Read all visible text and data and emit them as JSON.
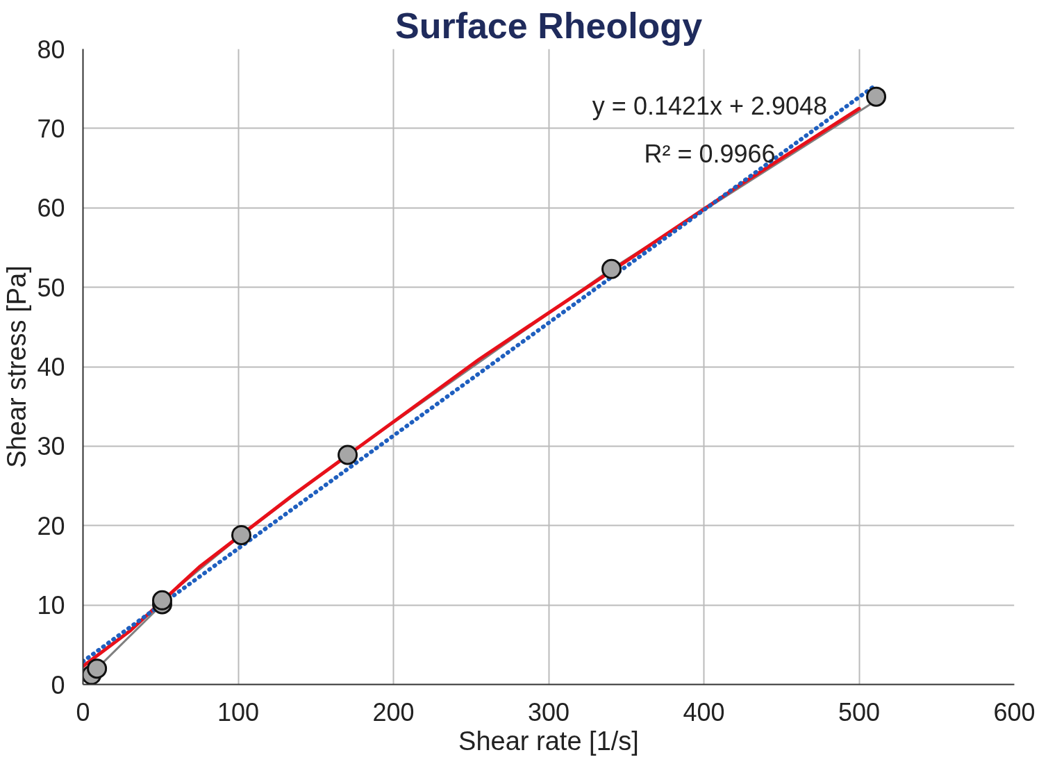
{
  "chart_data": {
    "type": "scatter",
    "title": "Surface Rheology",
    "xlabel": "Shear rate [1/s]",
    "ylabel": "Shear stress [Pa]",
    "xlim": [
      0,
      600
    ],
    "ylim": [
      0,
      80
    ],
    "xticks": [
      0,
      100,
      200,
      300,
      400,
      500,
      600
    ],
    "yticks": [
      0,
      10,
      20,
      30,
      40,
      50,
      60,
      70,
      80
    ],
    "grid": true,
    "series": [
      {
        "type": "line",
        "color": "#808080",
        "x": [
          5.5,
          9,
          51,
          51,
          102,
          170.5,
          340.5,
          511
        ],
        "values": [
          1.2,
          2,
          10.1,
          10.6,
          18.8,
          28.9,
          52.3,
          73.5
        ],
        "line_style": "solid",
        "marker": "none"
      },
      {
        "type": "line",
        "color": "#e8101a",
        "x": [
          0,
          30,
          75,
          135,
          255,
          425,
          500
        ],
        "values": [
          2.3,
          6.7,
          14.8,
          23.8,
          40.9,
          63.1,
          72.5
        ],
        "line_style": "solid",
        "marker": "none"
      },
      {
        "type": "line",
        "color": "#1f5fbf",
        "x": [
          0,
          511
        ],
        "values": [
          2.9,
          75.5
        ],
        "line_style": "dotted",
        "marker": "none"
      },
      {
        "color": "#a6a6a6",
        "x": [
          5.5,
          9,
          51,
          51,
          102,
          170.5,
          340.5,
          511
        ],
        "values": [
          1.2,
          2,
          10.1,
          10.6,
          18.8,
          28.9,
          52.3,
          74.0
        ],
        "marker": "circle"
      }
    ],
    "annotations": [
      "y = 0.1421x + 2.9048",
      "R² = 0.9966"
    ]
  }
}
